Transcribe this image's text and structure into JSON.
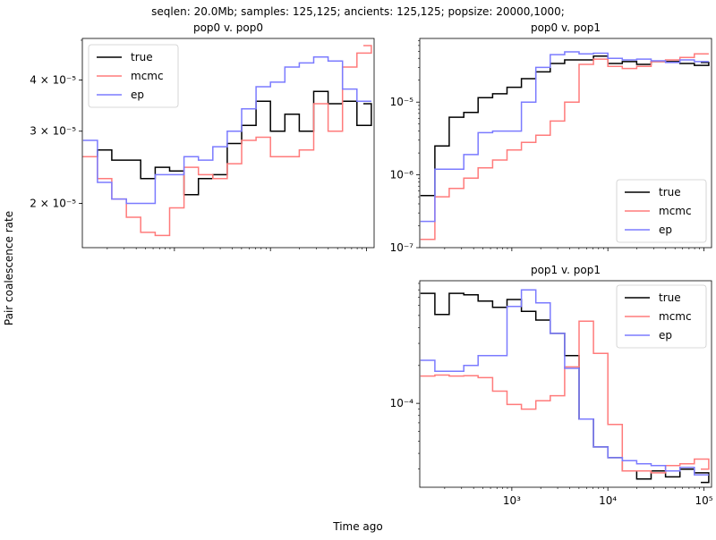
{
  "suptitle": "seqlen: 20.0Mb; samples: 125,125; ancients: 125,125; popsize: 20000,1000;",
  "xlabel": "Time ago",
  "ylabel": "Pair coalescence rate",
  "colors": {
    "true": "#000000",
    "mcmc": "#ff7b7b",
    "ep": "#7b7bff"
  },
  "chart_data": [
    {
      "type": "line",
      "step": "post",
      "title": "pop0 v. pop0",
      "xscale": "log",
      "yscale": "log",
      "xlim": [
        110,
        120000
      ],
      "ylim": [
        1.56e-05,
        5.05e-05
      ],
      "xticks": [],
      "yticks": [
        {
          "value": 2e-05,
          "label": "2 × 10⁻⁵"
        },
        {
          "value": 3e-05,
          "label": "3 × 10⁻⁵"
        },
        {
          "value": 4e-05,
          "label": "4 × 10⁻⁵"
        }
      ],
      "legend": "top-left",
      "x": [
        112,
        158,
        223,
        316,
        446,
        631,
        891,
        1259,
        1778,
        2512,
        3548,
        5012,
        7079,
        10000,
        14125,
        19953,
        28184,
        39811,
        56234,
        79433,
        112202
      ],
      "series": [
        {
          "name": "true",
          "values": [
            2.6e-05,
            2.7e-05,
            2.55e-05,
            2.55e-05,
            2.3e-05,
            2.45e-05,
            2.4e-05,
            2.1e-05,
            2.3e-05,
            2.35e-05,
            2.8e-05,
            3.1e-05,
            3.55e-05,
            3e-05,
            3.3e-05,
            3e-05,
            3.75e-05,
            3.5e-05,
            3.55e-05,
            3.1e-05,
            3.5e-05
          ]
        },
        {
          "name": "mcmc",
          "values": [
            2.6e-05,
            2.3e-05,
            2.05e-05,
            1.85e-05,
            1.7e-05,
            1.67e-05,
            1.95e-05,
            2.45e-05,
            2.35e-05,
            2.3e-05,
            2.5e-05,
            2.85e-05,
            2.9e-05,
            2.6e-05,
            2.6e-05,
            2.7e-05,
            3.5e-05,
            3e-05,
            4.3e-05,
            4.65e-05,
            4.85e-05
          ]
        },
        {
          "name": "ep",
          "values": [
            2.85e-05,
            2.25e-05,
            2.05e-05,
            2e-05,
            2e-05,
            2.35e-05,
            2.35e-05,
            2.6e-05,
            2.55e-05,
            2.75e-05,
            3e-05,
            3.4e-05,
            3.85e-05,
            3.95e-05,
            4.3e-05,
            4.4e-05,
            4.55e-05,
            4.45e-05,
            3.8e-05,
            3.55e-05,
            3.55e-05
          ]
        }
      ]
    },
    {
      "type": "line",
      "step": "post",
      "title": "pop0 v. pop1",
      "xscale": "log",
      "yscale": "log",
      "xlim": [
        110,
        120000
      ],
      "ylim": [
        1e-07,
        7.5e-05
      ],
      "xticks": [],
      "yticks": [
        {
          "value": 1e-07,
          "label": "10⁻⁷"
        },
        {
          "value": 1e-06,
          "label": "10⁻⁶"
        },
        {
          "value": 1e-05,
          "label": "10⁻⁵"
        }
      ],
      "legend": "bottom-right",
      "x": [
        112,
        158,
        223,
        316,
        446,
        631,
        891,
        1259,
        1778,
        2512,
        3548,
        5012,
        7079,
        10000,
        14125,
        19953,
        28184,
        39811,
        56234,
        79433,
        112202
      ],
      "series": [
        {
          "name": "true",
          "values": [
            5.2e-07,
            2.5e-06,
            6.2e-06,
            7.2e-06,
            1.15e-05,
            1.3e-05,
            1.6e-05,
            2.1e-05,
            2.6e-05,
            3.4e-05,
            3.8e-05,
            3.8e-05,
            4.3e-05,
            3.4e-05,
            3.6e-05,
            3.3e-05,
            3.6e-05,
            3.6e-05,
            3.4e-05,
            3.2e-05,
            3.5e-05
          ]
        },
        {
          "name": "mcmc",
          "values": [
            1.3e-07,
            5e-07,
            6.5e-07,
            9e-07,
            1.25e-06,
            1.6e-06,
            2.2e-06,
            2.8e-06,
            3.5e-06,
            5.5e-06,
            1e-05,
            3.3e-05,
            3.9e-05,
            3.1e-05,
            2.9e-05,
            3.1e-05,
            3.6e-05,
            3.8e-05,
            4.1e-05,
            4.6e-05,
            4.6e-05
          ]
        },
        {
          "name": "ep",
          "values": [
            2.3e-07,
            1.2e-06,
            1.2e-06,
            1.9e-06,
            3.8e-06,
            4e-06,
            4e-06,
            1e-05,
            3e-05,
            4.5e-05,
            4.9e-05,
            4.6e-05,
            4.7e-05,
            4e-05,
            3.8e-05,
            3.9e-05,
            3.7e-05,
            3.5e-05,
            3.8e-05,
            3.6e-05,
            3.6e-05
          ]
        }
      ]
    },
    {
      "type": "line",
      "step": "post",
      "title": "pop1 v. pop1",
      "xscale": "log",
      "yscale": "log",
      "xlim": [
        110,
        120000
      ],
      "ylim": [
        2.15e-05,
        0.000945
      ],
      "xticks": [
        {
          "value": 1000,
          "label": "10³"
        },
        {
          "value": 10000,
          "label": "10⁴"
        },
        {
          "value": 100000,
          "label": "10⁵"
        }
      ],
      "yticks": [
        {
          "value": 0.0001,
          "label": "10⁻⁴"
        }
      ],
      "legend": "top-right",
      "x": [
        112,
        158,
        223,
        316,
        446,
        631,
        891,
        1259,
        1778,
        2512,
        3548,
        5012,
        7079,
        10000,
        14125,
        19953,
        28184,
        39811,
        56234,
        79433,
        112202
      ],
      "series": [
        {
          "name": "true",
          "values": [
            0.00075,
            0.00051,
            0.00075,
            0.00073,
            0.00065,
            0.00058,
            0.00067,
            0.00054,
            0.00046,
            0.00036,
            0.00024,
            7.5e-05,
            4.5e-05,
            3.7e-05,
            2.9e-05,
            2.5e-05,
            2.9e-05,
            2.6e-05,
            3e-05,
            2.8e-05,
            2.35e-05
          ]
        },
        {
          "name": "mcmc",
          "values": [
            0.000165,
            0.000168,
            0.000165,
            0.000166,
            0.00016,
            0.000125,
            9.8e-05,
            9e-05,
            0.000105,
            0.000115,
            0.000195,
            0.00045,
            0.00025,
            6.8e-05,
            2.9e-05,
            2.9e-05,
            2.8e-05,
            3.2e-05,
            3.3e-05,
            3.6e-05,
            3e-05
          ]
        },
        {
          "name": "ep",
          "values": [
            0.00022,
            0.00018,
            0.00018,
            0.0002,
            0.00024,
            0.00024,
            0.00059,
            0.0008,
            0.00063,
            0.00036,
            0.00019,
            7.5e-05,
            4.5e-05,
            3.7e-05,
            3.5e-05,
            3.3e-05,
            3.2e-05,
            2.9e-05,
            3.1e-05,
            2.7e-05,
            2.7e-05
          ]
        }
      ]
    }
  ]
}
